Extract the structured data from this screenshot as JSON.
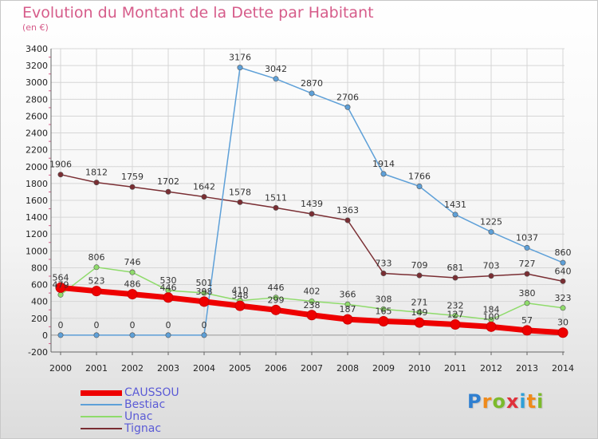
{
  "title": "Evolution du Montant de la Dette par Habitant",
  "subtitle": "(en €)",
  "colors": {
    "title": "#d65c8a",
    "grid": "#d6d6d6",
    "axis": "#666666",
    "zero_line": "#999999"
  },
  "logo": {
    "text": "Proxiti",
    "letters": [
      "P",
      "r",
      "o",
      "x",
      "i",
      "t",
      "i"
    ],
    "colors": [
      "#2f7fd0",
      "#ef8a1a",
      "#7cba2c",
      "#e0303a",
      "#2fa0d8",
      "#ef8a1a",
      "#7cba2c"
    ]
  },
  "chart_data": {
    "type": "line",
    "title": "Evolution du Montant de la Dette par Habitant",
    "subtitle": "(en €)",
    "x": [
      "2000",
      "2001",
      "2002",
      "2003",
      "2004",
      "2005",
      "2006",
      "2007",
      "2008",
      "2009",
      "2010",
      "2011",
      "2012",
      "2013",
      "2014"
    ],
    "y_ticks": [
      "-200",
      "0",
      "200",
      "400",
      "600",
      "800",
      "1000",
      "1200",
      "1400",
      "1600",
      "1800",
      "2000",
      "2200",
      "2400",
      "2600",
      "2800",
      "3000",
      "3200",
      "3400"
    ],
    "ylim": [
      -200,
      3400
    ],
    "grid": true,
    "legend_position": "bottom-left",
    "series": [
      {
        "name": "Tignac",
        "color": "#7a2e33",
        "values": [
          1906,
          1812,
          1759,
          1702,
          1642,
          1578,
          1511,
          1439,
          1363,
          733,
          709,
          681,
          703,
          727,
          640
        ],
        "labels": [
          "1906",
          "1812",
          "1759",
          "1702",
          "1642",
          "1578",
          "1511",
          "1439",
          "1363",
          "733",
          "709",
          "681",
          "703",
          "727",
          "640"
        ]
      },
      {
        "name": "Unac",
        "color": "#8fdb6b",
        "values": [
          479,
          806,
          746,
          530,
          501,
          410,
          446,
          402,
          366,
          308,
          271,
          232,
          184,
          380,
          323
        ],
        "labels": [
          "479",
          "806",
          "746",
          "530",
          "501",
          "410",
          "446",
          "402",
          "366",
          "308",
          "271",
          "232",
          "184",
          "380",
          "323"
        ]
      },
      {
        "name": "Bestiac",
        "color": "#5ea0d8",
        "values": [
          0,
          0,
          0,
          0,
          0,
          3176,
          3042,
          2870,
          2706,
          1914,
          1766,
          1431,
          1225,
          1037,
          860
        ],
        "labels": [
          "0",
          "0",
          "0",
          "0",
          "0",
          "3176",
          "3042",
          "2870",
          "2706",
          "1914",
          "1766",
          "1431",
          "1225",
          "1037",
          "860"
        ]
      },
      {
        "name": "CAUSSOU",
        "color": "#ee0000",
        "values": [
          564,
          523,
          486,
          446,
          398,
          348,
          299,
          238,
          187,
          165,
          149,
          127,
          100,
          57,
          30
        ],
        "labels": [
          "564",
          "523",
          "486",
          "446",
          "398",
          "348",
          "299",
          "238",
          "187",
          "165",
          "149",
          "127",
          "100",
          "57",
          "30"
        ]
      }
    ]
  },
  "legend": [
    {
      "name": "CAUSSOU",
      "color": "#ee0000",
      "text_color": "#5b5bd6"
    },
    {
      "name": "Bestiac",
      "color": "#5ea0d8",
      "text_color": "#5b5bd6"
    },
    {
      "name": "Unac",
      "color": "#8fdb6b",
      "text_color": "#5b5bd6"
    },
    {
      "name": "Tignac",
      "color": "#7a2e33",
      "text_color": "#5b5bd6"
    }
  ]
}
